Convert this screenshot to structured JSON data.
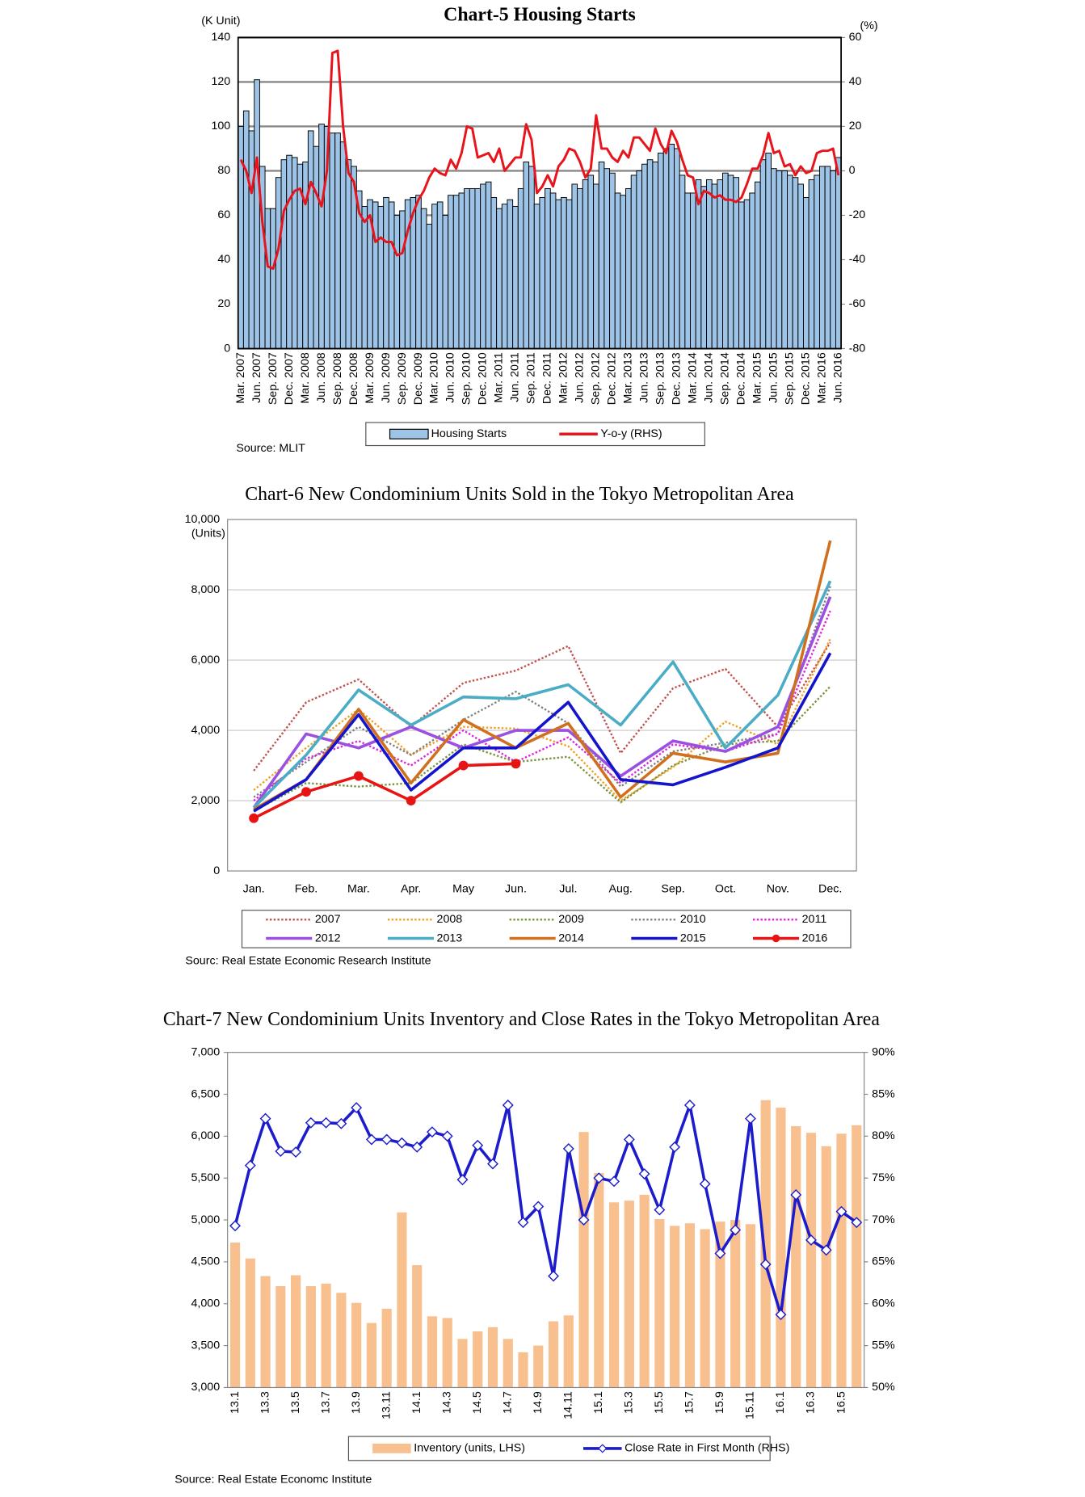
{
  "chart_data": [
    {
      "type": "combo",
      "title": "Chart-5 Housing Starts",
      "y_label": "(K Unit)",
      "y2_label": "(%)",
      "categories": [
        "Mar. 2007",
        null,
        null,
        "Jun. 2007",
        null,
        null,
        "Sep. 2007",
        null,
        null,
        "Dec. 2007",
        null,
        null,
        "Mar. 2008",
        null,
        null,
        "Jun. 2008",
        null,
        null,
        "Sep. 2008",
        null,
        null,
        "Dec. 2008",
        null,
        null,
        "Mar. 2009",
        null,
        null,
        "Jun. 2009",
        null,
        null,
        "Sep. 2009",
        null,
        null,
        "Dec. 2009",
        null,
        null,
        "Mar. 2010",
        null,
        null,
        "Jun. 2010",
        null,
        null,
        "Sep. 2010",
        null,
        null,
        "Dec. 2010",
        null,
        null,
        "Mar. 2011",
        null,
        null,
        "Jun. 2011",
        null,
        null,
        "Sep. 2011",
        null,
        null,
        "Dec. 2011",
        null,
        null,
        "Mar. 2012",
        null,
        null,
        "Jun. 2012",
        null,
        null,
        "Sep. 2012",
        null,
        null,
        "Dec. 2012",
        null,
        null,
        "Mar. 2013",
        null,
        null,
        "Jun. 2013",
        null,
        null,
        "Sep. 2013",
        null,
        null,
        "Dec. 2013",
        null,
        null,
        "Mar. 2014",
        null,
        null,
        "Jun. 2014",
        null,
        null,
        "Sep. 2014",
        null,
        null,
        "Dec. 2014",
        null,
        null,
        "Mar. 2015",
        null,
        null,
        "Jun. 2015",
        null,
        null,
        "Sep. 2015",
        null,
        null,
        "Dec. 2015",
        null,
        null,
        "Mar. 2016",
        null,
        null,
        "Jun. 2016"
      ],
      "series": [
        {
          "name": "Housing Starts",
          "kind": "bar",
          "color": "#9dc3e6",
          "values": [
            100,
            107,
            98,
            121,
            82,
            63,
            63,
            77,
            85,
            87,
            86,
            83,
            84,
            98,
            91,
            101,
            100,
            97,
            97,
            93,
            85,
            82,
            71,
            64,
            67,
            66,
            64,
            68,
            66,
            60,
            62,
            67,
            68,
            69,
            63,
            56,
            65,
            66,
            60,
            69,
            69,
            70,
            72,
            72,
            72,
            74,
            75,
            68,
            63,
            65,
            67,
            64,
            72,
            84,
            82,
            65,
            68,
            72,
            70,
            67,
            68,
            67,
            74,
            72,
            76,
            78,
            74,
            84,
            81,
            79,
            70,
            69,
            72,
            78,
            80,
            83,
            85,
            84,
            88,
            90,
            92,
            90,
            78,
            70,
            70,
            76,
            73,
            76,
            74,
            76,
            79,
            78,
            77,
            66,
            67,
            70,
            75,
            85,
            88,
            81,
            80,
            80,
            78,
            77,
            74,
            68,
            76,
            78,
            82,
            82,
            80,
            86
          ]
        },
        {
          "name": "Y-o-y (RHS)",
          "kind": "line",
          "axis": "y2",
          "color": "#e8141c",
          "values": [
            5,
            0,
            -10,
            6,
            -23,
            -43,
            -44,
            -35,
            -18,
            -13,
            -9,
            -8,
            -15,
            -5,
            -10,
            -16,
            0,
            53,
            54,
            20,
            -1,
            -5,
            -19,
            -23,
            -20,
            -32,
            -30,
            -32,
            -32,
            -38,
            -37,
            -27,
            -19,
            -13,
            -9,
            -3,
            1,
            -1,
            -2,
            5,
            1,
            8,
            20,
            19,
            6,
            7,
            8,
            4,
            10,
            0,
            3,
            6,
            6,
            21,
            14,
            -10,
            -7,
            -2,
            -7,
            2,
            5,
            10,
            9,
            4,
            -3,
            1,
            25,
            10,
            10,
            6,
            4,
            9,
            6,
            15,
            15,
            12,
            9,
            19,
            12,
            8,
            18,
            13,
            5,
            -2,
            -3,
            -15,
            -9,
            -10,
            -12,
            -11,
            -13,
            -13,
            -14,
            -12,
            -6,
            1,
            1,
            7,
            17,
            8,
            9,
            2,
            3,
            -2,
            2,
            -1,
            0,
            8,
            9,
            9,
            10,
            -2
          ]
        }
      ],
      "ylim": [
        0,
        140
      ],
      "yticks": [
        0,
        20,
        40,
        60,
        80,
        100,
        120,
        140
      ],
      "y2lim": [
        -80,
        60
      ],
      "y2ticks": [
        -80,
        -60,
        -40,
        -20,
        0,
        20,
        40,
        60
      ],
      "grid": true,
      "source": "Source: MLIT"
    },
    {
      "type": "line",
      "title": "Chart-6 New Condominium Units Sold in the Tokyo Metropolitan Area",
      "y_label": "(Units)",
      "categories": [
        "Jan.",
        "Feb.",
        "Mar.",
        "Apr.",
        "May",
        "Jun.",
        "Jul.",
        "Aug.",
        "Sep.",
        "Oct.",
        "Nov.",
        "Dec."
      ],
      "series": [
        {
          "name": "2007",
          "color": "#c0504d",
          "dash": true,
          "values": [
            2850,
            4800,
            5450,
            4100,
            5350,
            5700,
            6400,
            3350,
            5200,
            5750,
            4100,
            6500
          ]
        },
        {
          "name": "2008",
          "color": "#f0a020",
          "dash": true,
          "values": [
            2300,
            3500,
            4600,
            3300,
            4100,
            4050,
            3550,
            2000,
            2950,
            4250,
            3600,
            6600
          ]
        },
        {
          "name": "2009",
          "color": "#77933c",
          "dash": true,
          "values": [
            1700,
            2500,
            2400,
            2500,
            3600,
            3100,
            3250,
            1950,
            3000,
            3600,
            3700,
            5250
          ]
        },
        {
          "name": "2010",
          "color": "#808080",
          "dash": true,
          "values": [
            2100,
            3100,
            4100,
            3300,
            4300,
            5100,
            4200,
            2400,
            3400,
            3650,
            3900,
            8100
          ]
        },
        {
          "name": "2011",
          "color": "#e020e0",
          "dash": true,
          "values": [
            2000,
            3200,
            3700,
            3000,
            4000,
            3100,
            3800,
            2500,
            3600,
            3400,
            3900,
            7400
          ]
        },
        {
          "name": "2012",
          "color": "#9b50e0",
          "values": [
            1800,
            3900,
            3500,
            4100,
            3500,
            4000,
            4000,
            2700,
            3700,
            3400,
            4100,
            7800
          ]
        },
        {
          "name": "2013",
          "color": "#4bacc6",
          "values": [
            1800,
            3300,
            5150,
            4150,
            4950,
            4900,
            5300,
            4150,
            5950,
            3500,
            5000,
            8250
          ]
        },
        {
          "name": "2014",
          "color": "#d0701e",
          "values": [
            1750,
            2600,
            4600,
            2500,
            4300,
            3500,
            4200,
            2100,
            3350,
            3100,
            3350,
            9400
          ]
        },
        {
          "name": "2015",
          "color": "#1414cc",
          "values": [
            1700,
            2600,
            4450,
            2300,
            3500,
            3500,
            4800,
            2600,
            2450,
            2950,
            3500,
            6200
          ]
        },
        {
          "name": "2016",
          "color": "#e81414",
          "marker": "circle",
          "values": [
            1500,
            2250,
            2700,
            2000,
            3000,
            3050,
            null,
            null,
            null,
            null,
            null,
            null
          ]
        }
      ],
      "ylim": [
        0,
        10000
      ],
      "yticks": [
        0,
        {
          "value": 2000,
          "label": "2,000"
        },
        {
          "value": 4000,
          "label": "4,000"
        },
        {
          "value": 6000,
          "label": "6,000"
        },
        {
          "value": 8000,
          "label": "8,000"
        },
        {
          "value": 10000,
          "label": "10,000"
        }
      ],
      "grid": true,
      "source": "Sourc: Real Estate Economic  Research Institute"
    },
    {
      "type": "combo",
      "title": "Chart-7 New Condominium Units Inventory and Close Rates in the Tokyo Metropolitan Area",
      "categories": [
        "13.1",
        null,
        "13.3",
        null,
        "13.5",
        null,
        "13.7",
        null,
        "13.9",
        null,
        "13.11",
        null,
        "14.1",
        null,
        "14.3",
        null,
        "14.5",
        null,
        "14.7",
        null,
        "14.9",
        null,
        "14.11",
        null,
        "15.1",
        null,
        "15.3",
        null,
        "15.5",
        null,
        "15.7",
        null,
        "15.9",
        null,
        "15.11",
        null,
        "16.1",
        null,
        "16.3",
        null,
        "16.5",
        null
      ],
      "series": [
        {
          "name": "Inventory (units, LHS)",
          "kind": "bar",
          "color": "#f9c08f",
          "values": [
            4730,
            4540,
            4330,
            4210,
            4340,
            4210,
            4240,
            4130,
            4010,
            3770,
            3940,
            5090,
            4460,
            3850,
            3830,
            3580,
            3670,
            3720,
            3580,
            3420,
            3500,
            3790,
            3860,
            6050,
            5560,
            5210,
            5230,
            5300,
            5010,
            4930,
            4960,
            4890,
            4980,
            5000,
            4950,
            6430,
            6340,
            6120,
            6040,
            5880,
            6030,
            6130
          ]
        },
        {
          "name": "Close Rate in First Month (RHS)",
          "kind": "line",
          "axis": "y2",
          "color": "#1c1ccc",
          "marker": "diamond",
          "values": [
            69.3,
            76.5,
            82.1,
            78.2,
            78.1,
            81.6,
            81.6,
            81.5,
            83.4,
            79.6,
            79.6,
            79.2,
            78.7,
            80.5,
            80.0,
            74.8,
            78.9,
            76.7,
            83.7,
            69.7,
            71.6,
            63.3,
            78.5,
            70.0,
            75.0,
            74.6,
            79.6,
            75.5,
            71.2,
            78.7,
            83.7,
            74.3,
            66.0,
            68.8,
            82.1,
            64.7,
            58.7,
            73.0,
            67.6,
            66.4,
            71.0,
            69.7
          ]
        }
      ],
      "ylim": [
        3000,
        7000
      ],
      "yticks": [
        {
          "value": 3000,
          "label": "3,000"
        },
        {
          "value": 3500,
          "label": "3,500"
        },
        {
          "value": 4000,
          "label": "4,000"
        },
        {
          "value": 4500,
          "label": "4,500"
        },
        {
          "value": 5000,
          "label": "5,000"
        },
        {
          "value": 5500,
          "label": "5,500"
        },
        {
          "value": 6000,
          "label": "6,000"
        },
        {
          "value": 6500,
          "label": "6,500"
        },
        {
          "value": 7000,
          "label": "7,000"
        }
      ],
      "y2lim": [
        50,
        90
      ],
      "y2ticks": [
        {
          "value": 50,
          "label": "50%"
        },
        {
          "value": 55,
          "label": "55%"
        },
        {
          "value": 60,
          "label": "60%"
        },
        {
          "value": 65,
          "label": "65%"
        },
        {
          "value": 70,
          "label": "70%"
        },
        {
          "value": 75,
          "label": "75%"
        },
        {
          "value": 80,
          "label": "80%"
        },
        {
          "value": 85,
          "label": "85%"
        },
        {
          "value": 90,
          "label": "90%"
        }
      ],
      "grid": false,
      "source": "Source: Real Estate Economc Institute"
    }
  ]
}
